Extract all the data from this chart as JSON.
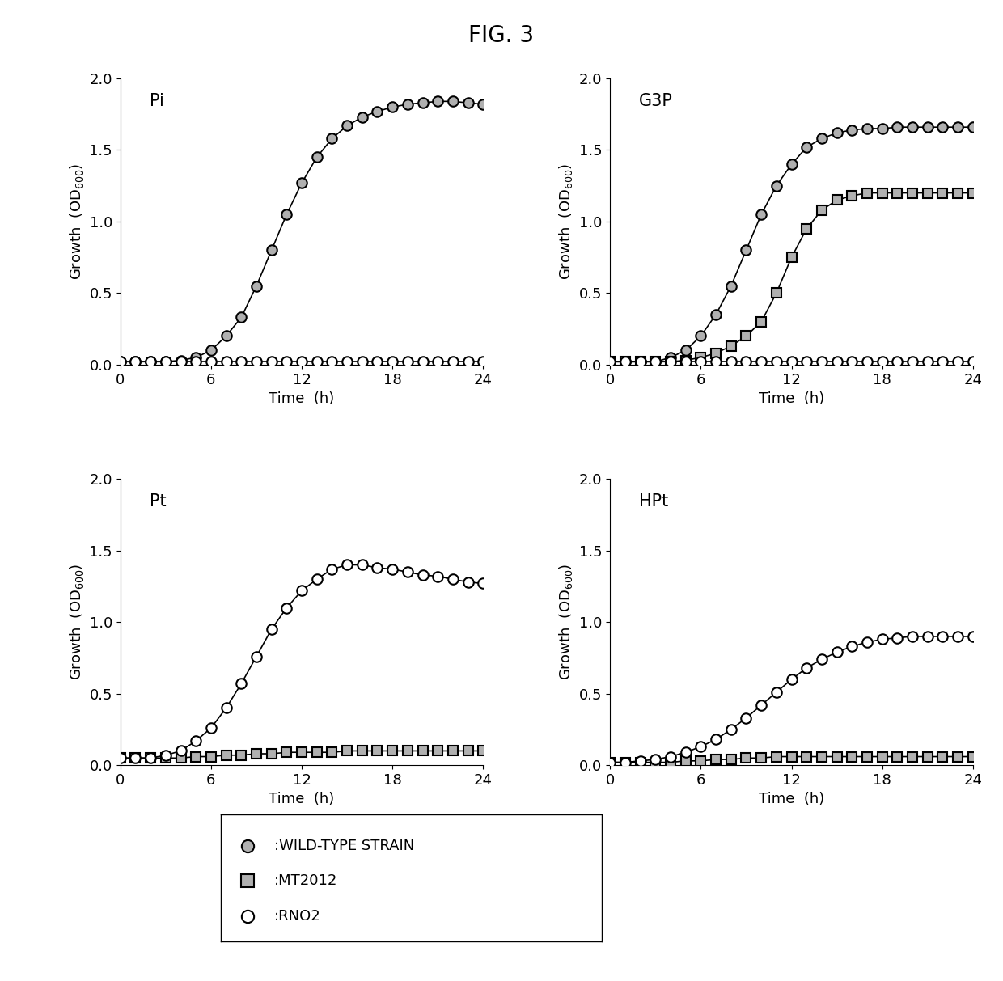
{
  "title": "FIG. 3",
  "subplots": [
    {
      "label": "Pi",
      "wild_type": [
        0.02,
        0.02,
        0.02,
        0.02,
        0.03,
        0.05,
        0.1,
        0.2,
        0.33,
        0.55,
        0.8,
        1.05,
        1.27,
        1.45,
        1.58,
        1.67,
        1.73,
        1.77,
        1.8,
        1.82,
        1.83,
        1.84,
        1.84,
        1.83,
        1.82
      ],
      "mt2012": null,
      "rno2": [
        0.02,
        0.02,
        0.02,
        0.02,
        0.02,
        0.02,
        0.02,
        0.02,
        0.02,
        0.02,
        0.02,
        0.02,
        0.02,
        0.02,
        0.02,
        0.02,
        0.02,
        0.02,
        0.02,
        0.02,
        0.02,
        0.02,
        0.02,
        0.02,
        0.02
      ],
      "ylim": [
        0.0,
        2.0
      ],
      "yticks": [
        0.0,
        0.5,
        1.0,
        1.5,
        2.0
      ]
    },
    {
      "label": "G3P",
      "wild_type": [
        0.02,
        0.02,
        0.02,
        0.02,
        0.05,
        0.1,
        0.2,
        0.35,
        0.55,
        0.8,
        1.05,
        1.25,
        1.4,
        1.52,
        1.58,
        1.62,
        1.64,
        1.65,
        1.65,
        1.66,
        1.66,
        1.66,
        1.66,
        1.66,
        1.66
      ],
      "mt2012": [
        0.02,
        0.02,
        0.02,
        0.02,
        0.02,
        0.03,
        0.05,
        0.08,
        0.13,
        0.2,
        0.3,
        0.5,
        0.75,
        0.95,
        1.08,
        1.15,
        1.18,
        1.2,
        1.2,
        1.2,
        1.2,
        1.2,
        1.2,
        1.2,
        1.2
      ],
      "rno2": [
        0.02,
        0.02,
        0.02,
        0.02,
        0.02,
        0.02,
        0.02,
        0.02,
        0.02,
        0.02,
        0.02,
        0.02,
        0.02,
        0.02,
        0.02,
        0.02,
        0.02,
        0.02,
        0.02,
        0.02,
        0.02,
        0.02,
        0.02,
        0.02,
        0.02
      ],
      "ylim": [
        0.0,
        2.0
      ],
      "yticks": [
        0.0,
        0.5,
        1.0,
        1.5,
        2.0
      ]
    },
    {
      "label": "Pt",
      "wild_type": null,
      "mt2012": [
        0.05,
        0.05,
        0.05,
        0.05,
        0.05,
        0.06,
        0.06,
        0.07,
        0.07,
        0.08,
        0.08,
        0.09,
        0.09,
        0.09,
        0.09,
        0.1,
        0.1,
        0.1,
        0.1,
        0.1,
        0.1,
        0.1,
        0.1,
        0.1,
        0.1
      ],
      "rno2": [
        0.05,
        0.05,
        0.05,
        0.07,
        0.1,
        0.17,
        0.26,
        0.4,
        0.57,
        0.76,
        0.95,
        1.1,
        1.22,
        1.3,
        1.37,
        1.4,
        1.4,
        1.38,
        1.37,
        1.35,
        1.33,
        1.32,
        1.3,
        1.28,
        1.27
      ],
      "ylim": [
        0.0,
        2.0
      ],
      "yticks": [
        0.0,
        0.5,
        1.0,
        1.5,
        2.0
      ]
    },
    {
      "label": "HPt",
      "wild_type": null,
      "mt2012": [
        0.02,
        0.02,
        0.02,
        0.02,
        0.02,
        0.03,
        0.03,
        0.04,
        0.04,
        0.05,
        0.05,
        0.06,
        0.06,
        0.06,
        0.06,
        0.06,
        0.06,
        0.06,
        0.06,
        0.06,
        0.06,
        0.06,
        0.06,
        0.06,
        0.06
      ],
      "rno2": [
        0.02,
        0.02,
        0.03,
        0.04,
        0.06,
        0.09,
        0.13,
        0.18,
        0.25,
        0.33,
        0.42,
        0.51,
        0.6,
        0.68,
        0.74,
        0.79,
        0.83,
        0.86,
        0.88,
        0.89,
        0.9,
        0.9,
        0.9,
        0.9,
        0.9
      ],
      "ylim": [
        0.0,
        2.0
      ],
      "yticks": [
        0.0,
        0.5,
        1.0,
        1.5,
        2.0
      ]
    }
  ],
  "time": [
    0,
    1,
    2,
    3,
    4,
    5,
    6,
    7,
    8,
    9,
    10,
    11,
    12,
    13,
    14,
    15,
    16,
    17,
    18,
    19,
    20,
    21,
    22,
    23,
    24
  ],
  "xlabel": "Time  (h)",
  "wild_type_color": "#b0b0b0",
  "mt2012_color": "#b0b0b0",
  "rno2_color": "#ffffff",
  "line_color": "#000000",
  "legend_wild_type_label": ":WILD-TYPE STRAIN",
  "legend_mt2012_label": ":MT2012",
  "legend_rno2_label": ":RNO2",
  "background_color": "#ffffff",
  "title_fontsize": 20,
  "axis_label_fontsize": 13,
  "tick_label_fontsize": 13,
  "subplot_label_fontsize": 15,
  "legend_fontsize": 13,
  "marker_size": 9,
  "marker_edge_width": 1.5,
  "line_width": 1.2
}
